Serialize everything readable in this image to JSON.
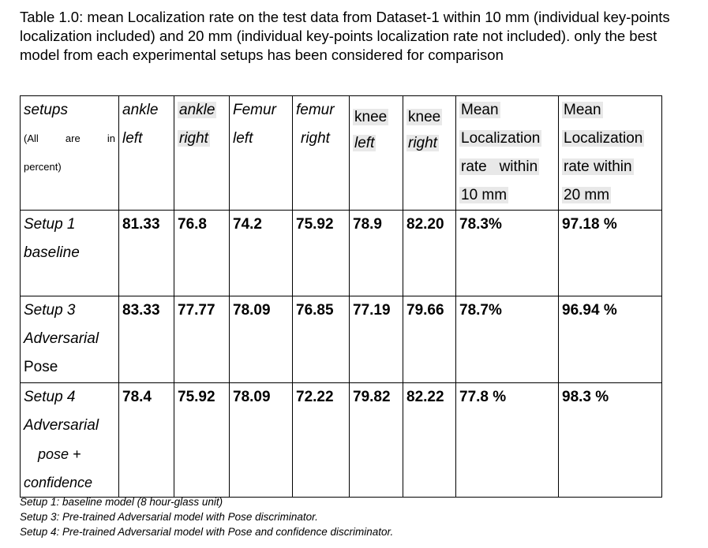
{
  "caption": "Table 1.0: mean Localization rate on the test data from Dataset-1 within 10 mm (individual key-points localization included) and 20 mm (individual key-points localization rate not included). only the best model from each experimental setups has been considered for comparison",
  "table": {
    "header": {
      "setups": "setups",
      "setups_note": [
        "(All",
        "are",
        "in",
        "percent)"
      ],
      "ankle_left": [
        "ankle",
        "left"
      ],
      "ankle_right": [
        "ankle",
        "right"
      ],
      "femur_left": [
        "Femur",
        "left"
      ],
      "femur_right": [
        "femur",
        "right"
      ],
      "knee_left": [
        "knee",
        "left"
      ],
      "knee_right": [
        "knee",
        "right"
      ],
      "mean10": [
        "Mean",
        "Localization",
        "rate   within",
        "10 mm"
      ],
      "mean20": [
        "Mean",
        "Localization",
        "rate within",
        "20 mm"
      ]
    },
    "rows": [
      {
        "setup": [
          "Setup 1",
          "baseline"
        ],
        "values": [
          "81.33",
          "76.8",
          "74.2",
          "75.92",
          "78.9",
          "82.20",
          "78.3%",
          "97.18 %"
        ]
      },
      {
        "setup": [
          "Setup 3",
          "Adversarial",
          "Pose"
        ],
        "values": [
          "83.33",
          "77.77",
          "78.09",
          "76.85",
          "77.19",
          "79.66",
          "78.7%",
          "96.94 %"
        ]
      },
      {
        "setup": [
          "Setup 4",
          "Adversarial",
          "pose +",
          "confidence"
        ],
        "values": [
          "78.4",
          "75.92",
          "78.09",
          "72.22",
          "79.82",
          "82.22",
          "77.8 %",
          "98.3 %"
        ]
      }
    ]
  },
  "footnotes": [
    "Setup 1: baseline model (8 hour-glass unit)",
    "Setup 3: Pre-trained Adversarial model with Pose discriminator.",
    "Setup 4: Pre-trained Adversarial model with Pose and confidence discriminator."
  ]
}
